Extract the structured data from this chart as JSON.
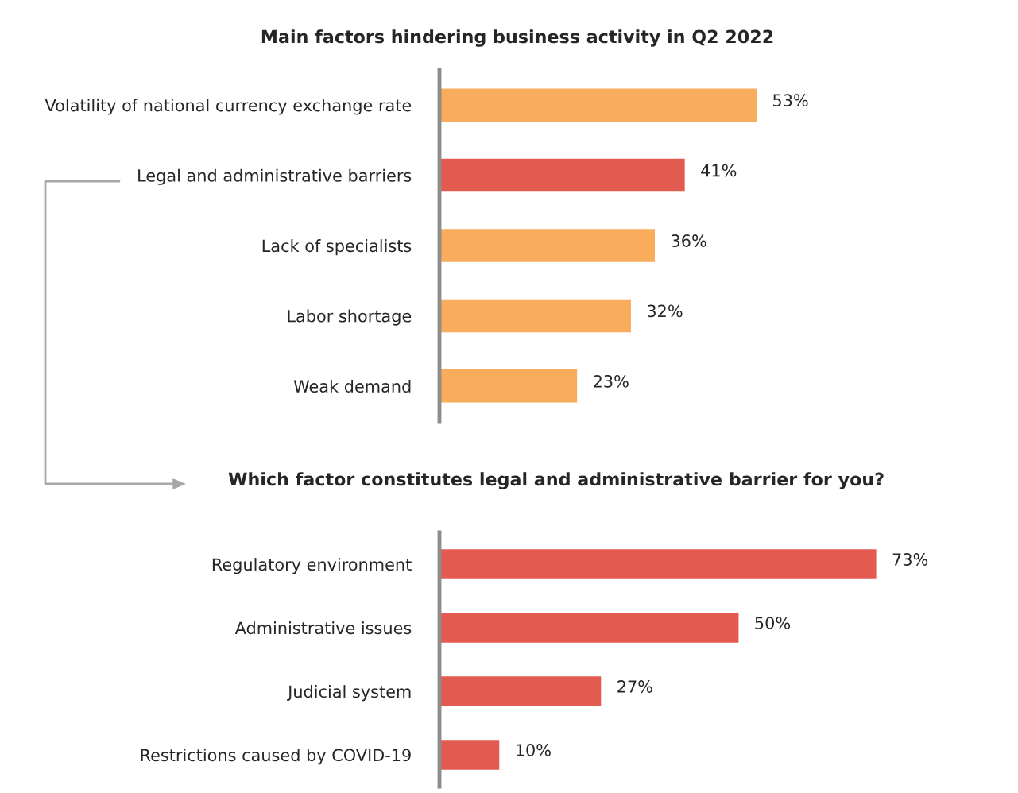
{
  "chart_data": [
    {
      "type": "bar",
      "orientation": "horizontal",
      "title": "Main factors hindering business activity in Q2 2022",
      "categories": [
        "Volatility of national currency exchange rate",
        "Legal and administrative barriers",
        "Lack of specialists",
        "Labor shortage",
        "Weak demand"
      ],
      "values": [
        53,
        41,
        36,
        32,
        23
      ],
      "colors": [
        "#f8ac5c",
        "#e35b50",
        "#f8ac5c",
        "#f8ac5c",
        "#f8ac5c"
      ],
      "value_labels": [
        "53%",
        "41%",
        "36%",
        "32%",
        "23%"
      ],
      "grid": false,
      "legend": false
    },
    {
      "type": "bar",
      "orientation": "horizontal",
      "title": "Which factor constitutes legal and administrative barrier for you?",
      "categories": [
        "Regulatory environment",
        "Administrative issues",
        "Judicial system",
        "Restrictions caused by COVID-19"
      ],
      "values": [
        73,
        50,
        27,
        10
      ],
      "colors": [
        "#e35b50",
        "#e35b50",
        "#e35b50",
        "#e35b50"
      ],
      "value_labels": [
        "73%",
        "50%",
        "27%",
        "10%"
      ],
      "grid": false,
      "legend": false
    }
  ]
}
